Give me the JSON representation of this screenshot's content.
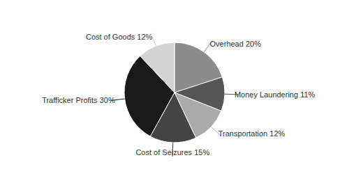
{
  "chart_data": {
    "type": "pie",
    "categories": [
      "Overhead 20%",
      "Money Laundering 11%",
      "Transportation 12%",
      "Cost of Seizures 15%",
      "Trafficker Profits 30%",
      "Cost of Goods 12%"
    ],
    "values": [
      20,
      11,
      12,
      15,
      30,
      12
    ],
    "colors": [
      "#8c8c8c",
      "#555555",
      "#aaaaaa",
      "#444444",
      "#1a1a1a",
      "#d4d4d4"
    ]
  }
}
